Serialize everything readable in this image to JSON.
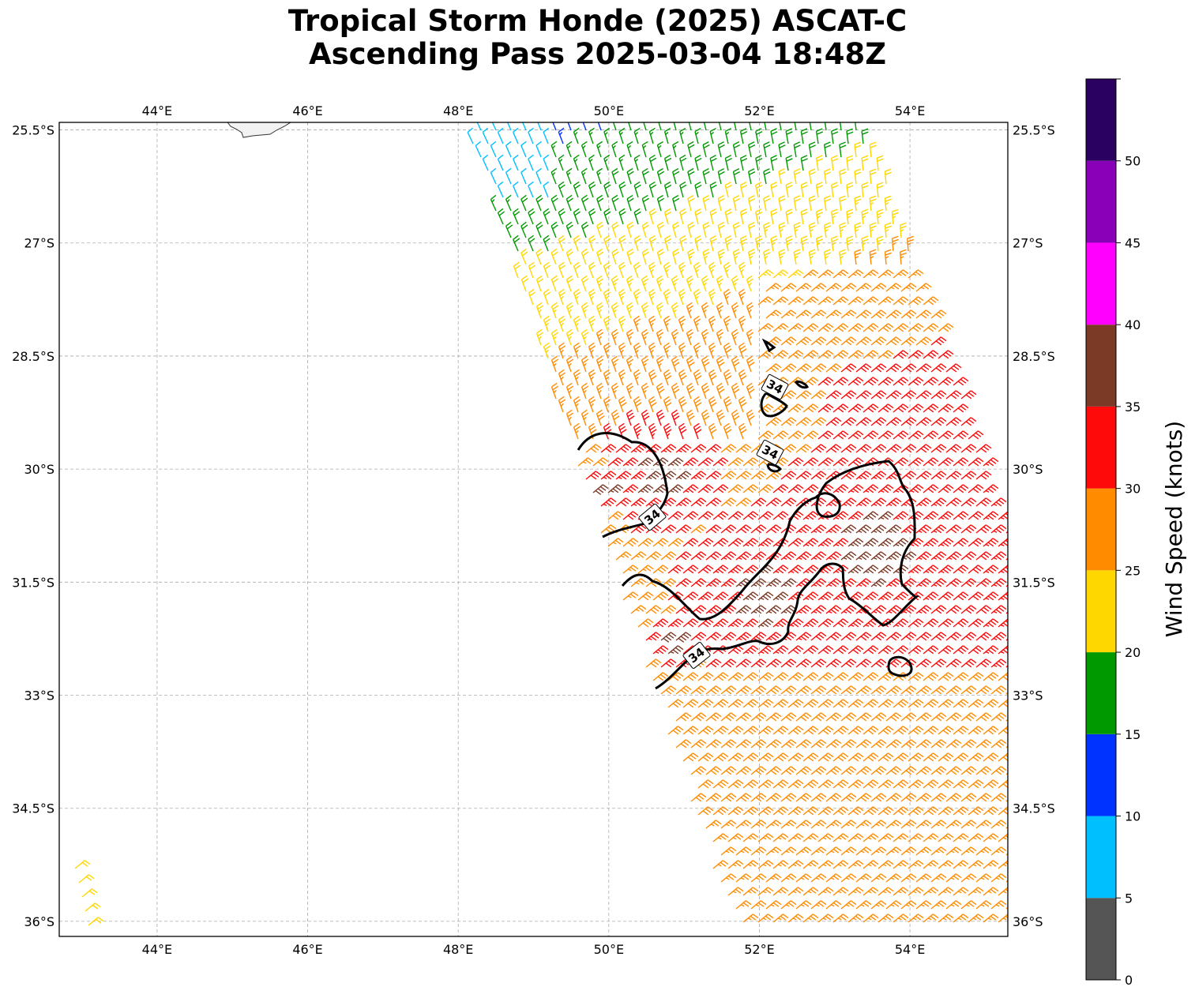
{
  "title": {
    "line1": "Tropical Storm Honde (2025) ASCAT-C",
    "line2": "Ascending Pass 2025-03-04 18:48Z"
  },
  "map": {
    "lon_range": [
      42.7,
      55.3
    ],
    "lat_range": [
      -36.2,
      -25.4
    ],
    "lon_ticks": [
      44,
      46,
      48,
      50,
      52,
      54
    ],
    "lon_tick_labels": [
      "44°E",
      "46°E",
      "48°E",
      "50°E",
      "52°E",
      "54°E"
    ],
    "lat_ticks": [
      -25.5,
      -27,
      -28.5,
      -30,
      -31.5,
      -33,
      -34.5,
      -36
    ],
    "lat_tick_labels": [
      "25.5°S",
      "27°S",
      "28.5°S",
      "30°S",
      "31.5°S",
      "33°S",
      "34.5°S",
      "36°S"
    ],
    "gridlines": true,
    "land_color": "#f2f2f2"
  },
  "colorbar": {
    "label": "Wind Speed (knots)",
    "bounds": [
      0,
      5,
      10,
      15,
      20,
      25,
      30,
      35,
      40,
      45,
      50,
      55
    ],
    "tick_labels": [
      "0",
      "5",
      "10",
      "15",
      "20",
      "25",
      "30",
      "35",
      "40",
      "45",
      "50"
    ],
    "colors": [
      "#555555",
      "#00bfff",
      "#0033ff",
      "#009900",
      "#ffd700",
      "#ff8c00",
      "#ff0a0a",
      "#7b3a26",
      "#ff00ff",
      "#8a00b8",
      "#2a0060"
    ]
  },
  "contour": {
    "level_knots": 34,
    "label": "34",
    "color": "#000000"
  }
}
